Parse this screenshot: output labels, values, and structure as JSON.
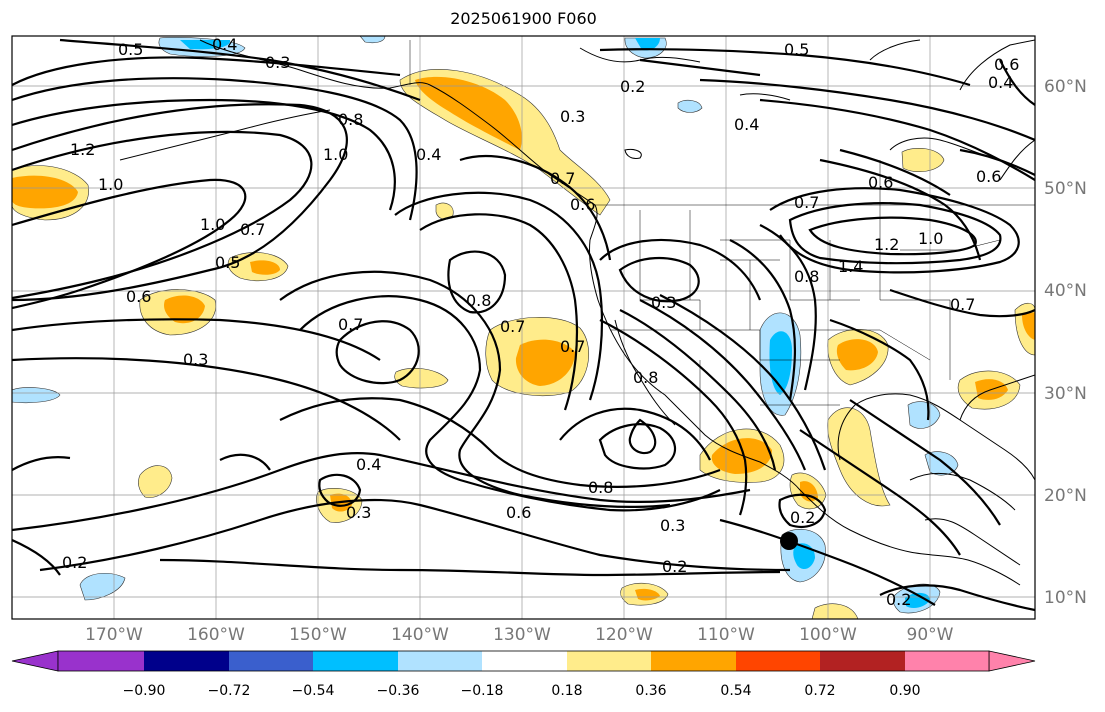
{
  "title": "2025061900 F060",
  "lat_labels": [
    "60°N",
    "50°N",
    "40°N",
    "30°N",
    "20°N",
    "10°N"
  ],
  "lon_labels": [
    "170°W",
    "160°W",
    "150°W",
    "140°W",
    "130°W",
    "120°W",
    "110°W",
    "100°W",
    "90°W"
  ],
  "colorbar": {
    "colors": [
      "#9932cc",
      "#00008b",
      "#3a5fcd",
      "#00bfff",
      "#b0e2ff",
      "#ffffff",
      "#ffec8b",
      "#ffa500",
      "#ff4500",
      "#b22222",
      "#ff82ab"
    ],
    "tick_labels": [
      "−0.90",
      "−0.72",
      "−0.54",
      "−0.36",
      "−0.18",
      "0.18",
      "0.36",
      "0.54",
      "0.72",
      "0.90"
    ]
  },
  "contour_labels": [
    "0.5",
    "0.4",
    "0.3",
    "1.2",
    "1.0",
    "1.0",
    "0.8",
    "1.0",
    "0.4",
    "0.6",
    "0.7",
    "0.2",
    "0.3",
    "0.4",
    "0.5",
    "0.6",
    "0.7",
    "0.6",
    "0.4",
    "0.6",
    "0.7",
    "1.4",
    "1.2",
    "1.0",
    "0.8",
    "0.8",
    "0.7",
    "0.7",
    "0.3",
    "0.8",
    "0.7",
    "0.5",
    "0.6",
    "0.3",
    "0.7",
    "0.4",
    "0.3",
    "0.8",
    "0.6",
    "0.2",
    "0.2",
    "0.2",
    "0.2",
    "0.3"
  ],
  "marker": {
    "name": "black dot",
    "lon": -104,
    "lat": 15.5
  }
}
